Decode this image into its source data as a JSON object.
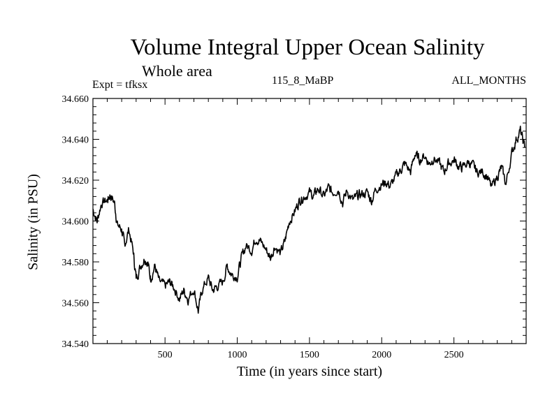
{
  "chart_data": {
    "type": "line",
    "title": "Volume Integral Upper Ocean Salinity",
    "subtitle": "Whole area",
    "left_label": "Expt = tfksx",
    "center_label": "115_8_MaBP",
    "right_label": "ALL_MONTHS",
    "xlabel": "Time (in years since start)",
    "ylabel": "Salinity (in PSU)",
    "xlim": [
      1,
      3000
    ],
    "ylim": [
      34.54,
      34.66
    ],
    "x_ticks": [
      500,
      1000,
      1500,
      2000,
      2500
    ],
    "x_tick_labels": [
      "500",
      "1000",
      "1500",
      "2000",
      "2500"
    ],
    "y_ticks": [
      34.54,
      34.56,
      34.58,
      34.6,
      34.62,
      34.64,
      34.66
    ],
    "y_tick_labels": [
      "34.540",
      "34.560",
      "34.580",
      "34.600",
      "34.620",
      "34.640",
      "34.660"
    ],
    "grid": false,
    "series": [
      {
        "name": "salinity",
        "color": "#000000",
        "x": [
          0,
          30,
          60,
          100,
          120,
          150,
          170,
          200,
          220,
          250,
          280,
          300,
          330,
          360,
          380,
          400,
          430,
          460,
          500,
          530,
          560,
          600,
          630,
          660,
          700,
          730,
          760,
          800,
          830,
          860,
          900,
          930,
          960,
          1000,
          1030,
          1060,
          1100,
          1130,
          1160,
          1200,
          1230,
          1260,
          1300,
          1330,
          1360,
          1400,
          1430,
          1460,
          1500,
          1530,
          1560,
          1600,
          1630,
          1660,
          1700,
          1730,
          1760,
          1800,
          1830,
          1860,
          1900,
          1930,
          1960,
          2000,
          2030,
          2060,
          2100,
          2130,
          2160,
          2200,
          2230,
          2260,
          2300,
          2330,
          2360,
          2400,
          2430,
          2460,
          2500,
          2530,
          2560,
          2600,
          2630,
          2660,
          2700,
          2730,
          2760,
          2800,
          2830,
          2860,
          2900,
          2930,
          2960,
          2990
        ],
        "values": [
          34.606,
          34.6,
          34.609,
          34.61,
          34.613,
          34.609,
          34.598,
          34.596,
          34.588,
          34.596,
          34.585,
          34.572,
          34.578,
          34.582,
          34.58,
          34.572,
          34.578,
          34.57,
          34.568,
          34.57,
          34.568,
          34.562,
          34.566,
          34.562,
          34.567,
          34.556,
          34.567,
          34.572,
          34.566,
          34.568,
          34.57,
          34.578,
          34.574,
          34.573,
          34.582,
          34.588,
          34.586,
          34.592,
          34.59,
          34.586,
          34.582,
          34.588,
          34.584,
          34.59,
          34.6,
          34.605,
          34.61,
          34.612,
          34.614,
          34.612,
          34.616,
          34.612,
          34.616,
          34.614,
          34.616,
          34.609,
          34.615,
          34.61,
          34.612,
          34.613,
          34.614,
          34.61,
          34.616,
          34.618,
          34.619,
          34.617,
          34.622,
          34.625,
          34.628,
          34.624,
          34.633,
          34.63,
          34.632,
          34.628,
          34.631,
          34.628,
          34.624,
          34.628,
          34.63,
          34.627,
          34.626,
          34.629,
          34.627,
          34.624,
          34.624,
          34.622,
          34.616,
          34.622,
          34.626,
          34.618,
          34.633,
          34.64,
          34.644,
          34.636
        ]
      }
    ]
  }
}
